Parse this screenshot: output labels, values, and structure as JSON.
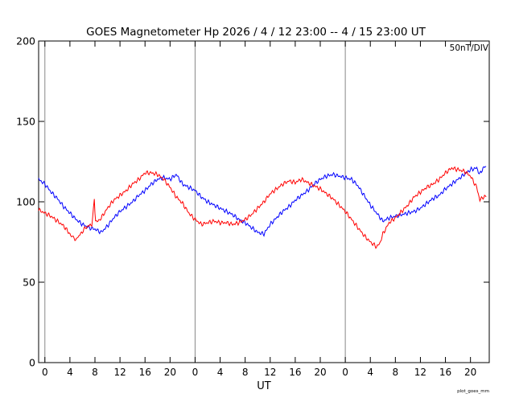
{
  "chart_data": {
    "type": "line",
    "title": "GOES Magnetometer Hp   2026 /  4 / 12   23:00 --  4 / 15   23:00   UT",
    "units_label": "50nT/DIV",
    "footer_label": "plot_goes_mm",
    "xlabel": "UT",
    "ylabel": "",
    "ylim": [
      0,
      200
    ],
    "xlim": [
      -1,
      71
    ],
    "y_ticks": [
      0,
      50,
      100,
      150,
      200
    ],
    "x_ticks": [
      {
        "t": 0,
        "label": "0"
      },
      {
        "t": 4,
        "label": "4"
      },
      {
        "t": 8,
        "label": "8"
      },
      {
        "t": 12,
        "label": "12"
      },
      {
        "t": 16,
        "label": "16"
      },
      {
        "t": 20,
        "label": "20"
      },
      {
        "t": 24,
        "label": "0"
      },
      {
        "t": 28,
        "label": "4"
      },
      {
        "t": 32,
        "label": "8"
      },
      {
        "t": 36,
        "label": "12"
      },
      {
        "t": 40,
        "label": "16"
      },
      {
        "t": 44,
        "label": "20"
      },
      {
        "t": 48,
        "label": "0"
      },
      {
        "t": 52,
        "label": "4"
      },
      {
        "t": 56,
        "label": "8"
      },
      {
        "t": 60,
        "label": "12"
      },
      {
        "t": 64,
        "label": "16"
      },
      {
        "t": 68,
        "label": "20"
      }
    ],
    "day_boundaries": [
      0,
      24,
      48
    ],
    "series": [
      {
        "name": "GOES blue",
        "color": "#0000ff",
        "points": [
          [
            -1,
            114
          ],
          [
            0,
            111
          ],
          [
            1,
            106
          ],
          [
            2,
            102
          ],
          [
            3,
            97
          ],
          [
            4,
            93
          ],
          [
            5,
            89
          ],
          [
            6,
            86
          ],
          [
            7,
            84
          ],
          [
            8,
            83
          ],
          [
            9,
            81
          ],
          [
            10,
            85
          ],
          [
            11,
            90
          ],
          [
            12,
            94
          ],
          [
            13,
            97
          ],
          [
            14,
            100
          ],
          [
            15,
            104
          ],
          [
            16,
            107
          ],
          [
            17,
            111
          ],
          [
            18,
            114
          ],
          [
            19,
            115
          ],
          [
            20,
            114
          ],
          [
            21,
            117
          ],
          [
            22,
            111
          ],
          [
            23,
            109
          ],
          [
            24,
            107
          ],
          [
            25,
            103
          ],
          [
            26,
            100
          ],
          [
            27,
            98
          ],
          [
            28,
            96
          ],
          [
            29,
            94
          ],
          [
            30,
            92
          ],
          [
            31,
            89
          ],
          [
            32,
            87
          ],
          [
            33,
            84
          ],
          [
            34,
            81
          ],
          [
            35,
            80
          ],
          [
            36,
            86
          ],
          [
            37,
            90
          ],
          [
            38,
            94
          ],
          [
            39,
            97
          ],
          [
            40,
            101
          ],
          [
            41,
            104
          ],
          [
            42,
            107
          ],
          [
            43,
            111
          ],
          [
            44,
            114
          ],
          [
            45,
            116
          ],
          [
            46,
            117
          ],
          [
            47,
            116
          ],
          [
            48,
            115
          ],
          [
            49,
            114
          ],
          [
            50,
            110
          ],
          [
            51,
            104
          ],
          [
            52,
            98
          ],
          [
            53,
            93
          ],
          [
            54,
            88
          ],
          [
            55,
            90
          ],
          [
            56,
            91
          ],
          [
            57,
            92
          ],
          [
            58,
            93
          ],
          [
            59,
            94
          ],
          [
            60,
            96
          ],
          [
            61,
            99
          ],
          [
            62,
            102
          ],
          [
            63,
            104
          ],
          [
            64,
            108
          ],
          [
            65,
            111
          ],
          [
            66,
            114
          ],
          [
            67,
            117
          ],
          [
            68,
            120
          ],
          [
            69,
            121
          ],
          [
            69.5,
            117
          ],
          [
            70,
            121
          ],
          [
            70.5,
            122
          ]
        ]
      },
      {
        "name": "GOES red",
        "color": "#ff0000",
        "points": [
          [
            -1,
            95
          ],
          [
            0,
            93
          ],
          [
            1,
            91
          ],
          [
            2,
            88
          ],
          [
            3,
            85
          ],
          [
            4,
            80
          ],
          [
            4.8,
            76
          ],
          [
            5.5,
            79
          ],
          [
            6.5,
            84
          ],
          [
            7.5,
            86
          ],
          [
            7.9,
            101
          ],
          [
            8.1,
            87
          ],
          [
            9,
            90
          ],
          [
            10,
            96
          ],
          [
            11,
            101
          ],
          [
            12,
            104
          ],
          [
            13,
            107
          ],
          [
            14,
            111
          ],
          [
            15,
            114
          ],
          [
            16,
            118
          ],
          [
            17,
            118
          ],
          [
            18,
            117
          ],
          [
            19,
            114
          ],
          [
            20,
            109
          ],
          [
            21,
            103
          ],
          [
            22,
            99
          ],
          [
            23,
            93
          ],
          [
            24,
            89
          ],
          [
            25,
            86
          ],
          [
            26,
            87
          ],
          [
            27,
            88
          ],
          [
            28,
            87
          ],
          [
            29,
            87
          ],
          [
            30,
            86
          ],
          [
            31,
            87
          ],
          [
            32,
            89
          ],
          [
            33,
            92
          ],
          [
            34,
            96
          ],
          [
            35,
            100
          ],
          [
            36,
            105
          ],
          [
            37,
            108
          ],
          [
            38,
            111
          ],
          [
            39,
            113
          ],
          [
            40,
            112
          ],
          [
            41,
            114
          ],
          [
            42,
            112
          ],
          [
            43,
            110
          ],
          [
            44,
            108
          ],
          [
            45,
            105
          ],
          [
            46,
            102
          ],
          [
            47,
            98
          ],
          [
            48,
            94
          ],
          [
            49,
            89
          ],
          [
            50,
            84
          ],
          [
            51,
            79
          ],
          [
            52,
            75
          ],
          [
            53,
            72
          ],
          [
            53.5,
            74
          ],
          [
            54,
            80
          ],
          [
            55,
            87
          ],
          [
            56,
            90
          ],
          [
            57,
            94
          ],
          [
            58,
            98
          ],
          [
            59,
            103
          ],
          [
            60,
            106
          ],
          [
            61,
            109
          ],
          [
            62,
            111
          ],
          [
            63,
            114
          ],
          [
            64,
            118
          ],
          [
            65,
            121
          ],
          [
            66,
            120
          ],
          [
            67,
            119
          ],
          [
            68,
            116
          ],
          [
            69,
            109
          ],
          [
            69.5,
            101
          ],
          [
            70,
            103
          ],
          [
            70.5,
            103
          ]
        ]
      }
    ]
  }
}
